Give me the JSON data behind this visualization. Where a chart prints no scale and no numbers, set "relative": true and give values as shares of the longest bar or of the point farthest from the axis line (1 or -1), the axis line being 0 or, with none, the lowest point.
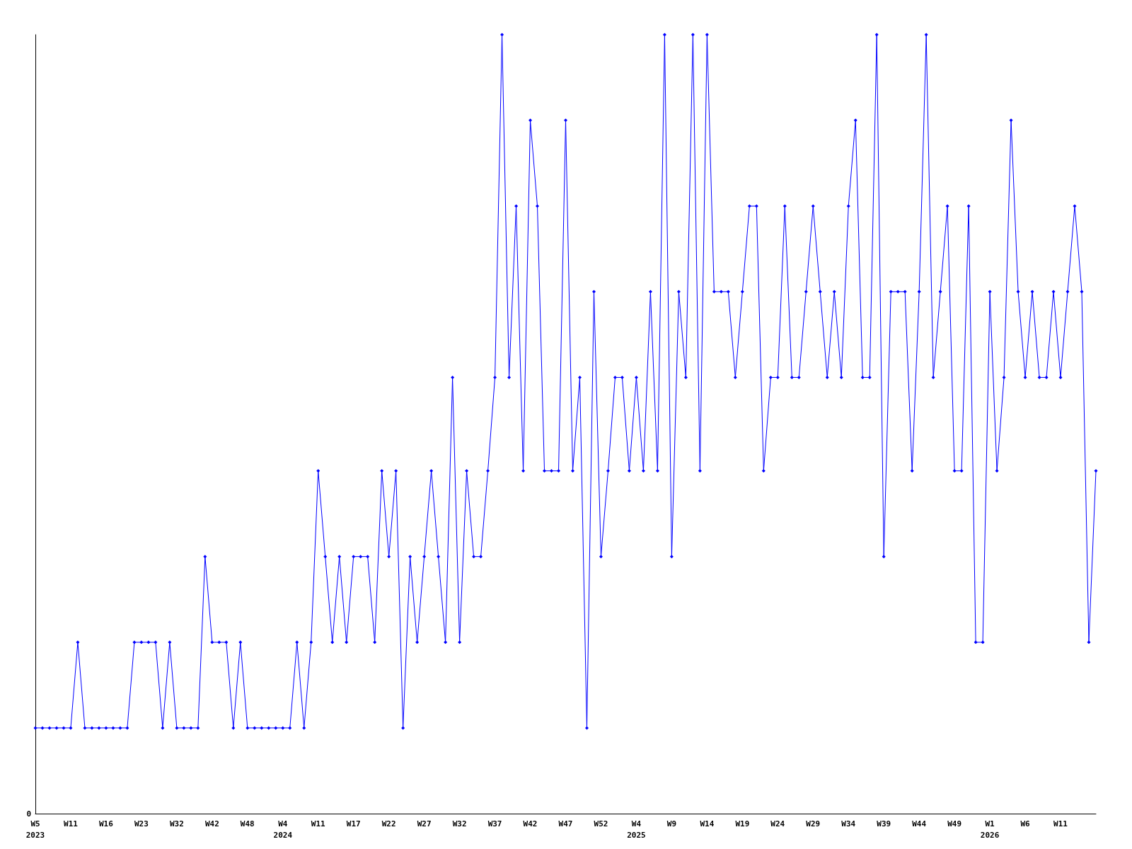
{
  "chart_data": {
    "type": "line",
    "relative": true,
    "marker": "diamond",
    "line_style": "solid",
    "annotations": [
      "0"
    ],
    "categories": [
      "W5\n2023",
      null,
      null,
      null,
      null,
      "W11",
      null,
      null,
      null,
      null,
      "W16",
      null,
      null,
      null,
      null,
      "W23",
      null,
      null,
      null,
      null,
      "W32",
      null,
      null,
      null,
      null,
      "W42",
      null,
      null,
      null,
      null,
      "W48",
      null,
      null,
      null,
      null,
      "W4\n2024",
      null,
      null,
      null,
      null,
      "W11",
      null,
      null,
      null,
      null,
      "W17",
      null,
      null,
      null,
      null,
      "W22",
      null,
      null,
      null,
      null,
      "W27",
      null,
      null,
      null,
      null,
      "W32",
      null,
      null,
      null,
      null,
      "W37",
      null,
      null,
      null,
      null,
      "W42",
      null,
      null,
      null,
      null,
      "W47",
      null,
      null,
      null,
      null,
      "W52",
      null,
      null,
      null,
      null,
      "W4\n2025",
      null,
      null,
      null,
      null,
      "W9",
      null,
      null,
      null,
      null,
      "W14",
      null,
      null,
      null,
      null,
      "W19",
      null,
      null,
      null,
      null,
      "W24",
      null,
      null,
      null,
      null,
      "W29",
      null,
      null,
      null,
      null,
      "W34",
      null,
      null,
      null,
      null,
      "W39",
      null,
      null,
      null,
      null,
      "W44",
      null,
      null,
      null,
      null,
      "W49",
      null,
      null,
      null,
      null,
      "W1\n2026",
      null,
      null,
      null,
      null,
      "W6",
      null,
      null,
      null,
      null,
      "W11",
      null,
      null,
      null,
      null,
      null
    ],
    "series": [
      {
        "color": "#0000ff",
        "values": [
          0.11,
          0.11,
          0.11,
          0.11,
          0.11,
          0.11,
          0.22,
          0.11,
          0.11,
          0.11,
          0.11,
          0.11,
          0.11,
          0.11,
          0.22,
          0.22,
          0.22,
          0.22,
          0.11,
          0.22,
          0.11,
          0.11,
          0.11,
          0.11,
          0.33,
          0.22,
          0.22,
          0.22,
          0.11,
          0.22,
          0.11,
          0.11,
          0.11,
          0.11,
          0.11,
          0.11,
          0.11,
          0.22,
          0.11,
          0.22,
          0.44,
          0.33,
          0.22,
          0.33,
          0.22,
          0.33,
          0.33,
          0.33,
          0.22,
          0.44,
          0.33,
          0.44,
          0.11,
          0.33,
          0.22,
          0.33,
          0.44,
          0.33,
          0.22,
          0.56,
          0.22,
          0.44,
          0.33,
          0.33,
          0.44,
          0.56,
          1,
          0.56,
          0.78,
          0.44,
          0.89,
          0.78,
          0.44,
          0.44,
          0.44,
          0.89,
          0.44,
          0.56,
          0.11,
          0.67,
          0.33,
          0.44,
          0.56,
          0.56,
          0.44,
          0.56,
          0.44,
          0.67,
          0.44,
          1,
          0.33,
          0.67,
          0.56,
          1,
          0.44,
          1,
          0.67,
          0.67,
          0.67,
          0.56,
          0.67,
          0.78,
          0.78,
          0.44,
          0.56,
          0.56,
          0.78,
          0.56,
          0.56,
          0.67,
          0.78,
          0.67,
          0.56,
          0.67,
          0.56,
          0.78,
          0.89,
          0.56,
          0.56,
          1,
          0.33,
          0.67,
          0.67,
          0.67,
          0.44,
          0.67,
          1,
          0.56,
          0.67,
          0.78,
          0.44,
          0.44,
          0.78,
          0.22,
          0.22,
          0.67,
          0.44,
          0.56,
          0.89,
          0.67,
          0.56,
          0.67,
          0.56,
          0.56,
          0.67,
          0.56,
          0.67,
          0.78,
          0.67,
          0.22,
          0.44
        ]
      }
    ]
  }
}
